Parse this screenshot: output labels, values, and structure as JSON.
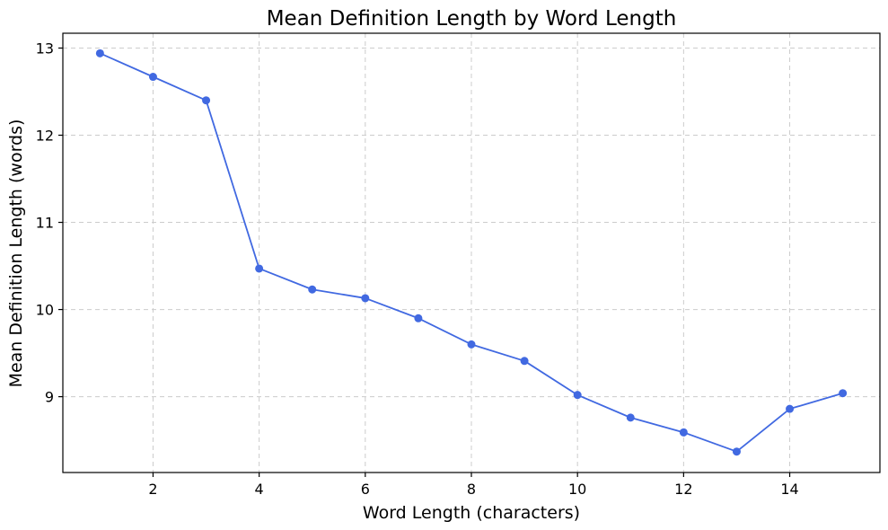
{
  "chart_data": {
    "type": "line",
    "title": "Mean Definition Length by Word Length",
    "xlabel": "Word Length (characters)",
    "ylabel": "Mean Definition Length (words)",
    "xlim": [
      0.3,
      15.7
    ],
    "ylim": [
      8.13,
      13.17
    ],
    "xticks": [
      2,
      4,
      6,
      8,
      10,
      12,
      14
    ],
    "yticks": [
      9,
      10,
      11,
      12,
      13
    ],
    "grid": true,
    "series": [
      {
        "color": "#4169e1",
        "marker": "circle",
        "points": [
          {
            "x": 1,
            "y": 12.94
          },
          {
            "x": 2,
            "y": 12.67
          },
          {
            "x": 3,
            "y": 12.4
          },
          {
            "x": 4,
            "y": 10.47
          },
          {
            "x": 5,
            "y": 10.23
          },
          {
            "x": 6,
            "y": 10.13
          },
          {
            "x": 7,
            "y": 9.9
          },
          {
            "x": 8,
            "y": 9.6
          },
          {
            "x": 9,
            "y": 9.41
          },
          {
            "x": 10,
            "y": 9.02
          },
          {
            "x": 11,
            "y": 8.76
          },
          {
            "x": 12,
            "y": 8.59
          },
          {
            "x": 13,
            "y": 8.37
          },
          {
            "x": 14,
            "y": 8.86
          },
          {
            "x": 15,
            "y": 9.04
          }
        ]
      }
    ]
  }
}
